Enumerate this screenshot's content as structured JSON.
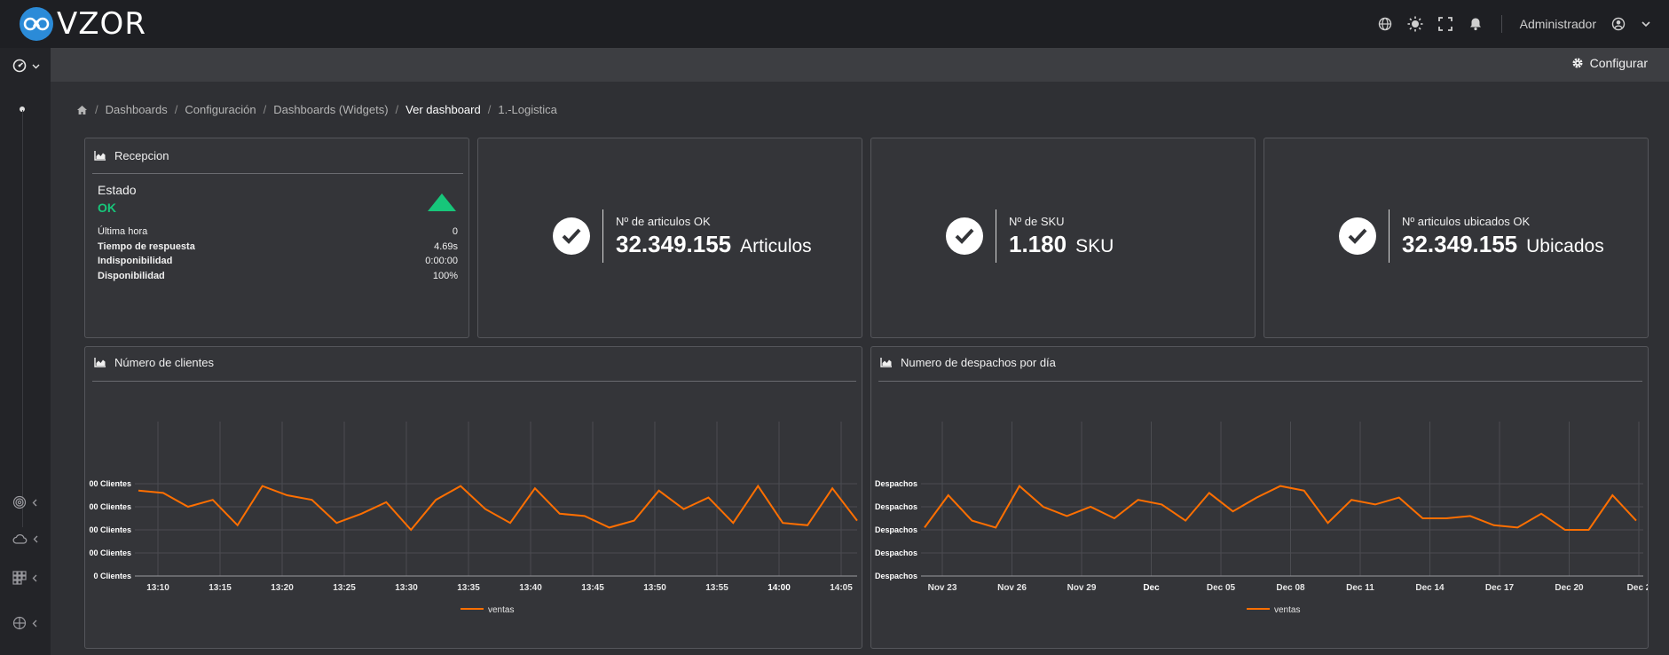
{
  "app": {
    "name": "VZOR"
  },
  "topbar": {
    "user": "Administrador"
  },
  "subbar": {
    "configure_label": "Configurar"
  },
  "breadcrumb": {
    "items": [
      "Dashboards",
      "Configuración",
      "Dashboards (Widgets)",
      "Ver dashboard",
      "1.-Logistica"
    ]
  },
  "reception": {
    "title": "Recepcion",
    "estado_label": "Estado",
    "estado_value": "OK",
    "stats": [
      {
        "label": "Última hora",
        "value": "0"
      },
      {
        "label": "Tiempo de respuesta",
        "value": "4.69s"
      },
      {
        "label": "Indisponibilidad",
        "value": "0:00:00"
      },
      {
        "label": "Disponibilidad",
        "value": "100%"
      }
    ]
  },
  "kpis": [
    {
      "title": "Nº de articulos OK",
      "value": "32.349.155",
      "unit": "Articulos"
    },
    {
      "title": "Nº de SKU",
      "value": "1.180",
      "unit": "SKU"
    },
    {
      "title": "Nº articulos ubicados OK",
      "value": "32.349.155",
      "unit": "Ubicados"
    }
  ],
  "colors": {
    "accent": "#ff6f00",
    "ok": "#17c67a",
    "brand": "#2b8bd8"
  },
  "chart_data": [
    {
      "type": "line",
      "title": "Número de clientes",
      "y_ticks": [
        "00 Clientes",
        "00 Clientes",
        "00 Clientes",
        "00 Clientes",
        "0 Clientes"
      ],
      "x_ticks": [
        "13:10",
        "13:15",
        "13:20",
        "13:25",
        "13:30",
        "13:35",
        "13:40",
        "13:45",
        "13:50",
        "13:55",
        "14:00",
        "14:05"
      ],
      "x_ticks_bold": [
        "14:00"
      ],
      "ylim": [
        0,
        5
      ],
      "series": [
        {
          "name": "ventas",
          "values": [
            3.7,
            3.6,
            3.0,
            3.3,
            2.2,
            3.9,
            3.5,
            3.3,
            2.3,
            2.7,
            3.2,
            2.0,
            3.3,
            3.9,
            2.9,
            2.3,
            3.8,
            2.7,
            2.6,
            2.1,
            2.4,
            3.7,
            2.9,
            3.4,
            2.3,
            3.9,
            2.3,
            2.2,
            3.8,
            2.4
          ]
        }
      ]
    },
    {
      "type": "line",
      "title": "Numero de despachos por día",
      "y_ticks": [
        "Despachos",
        "Despachos",
        "Despachos",
        "Despachos",
        "Despachos"
      ],
      "x_ticks": [
        "Nov 23",
        "Nov 26",
        "Nov 29",
        "Dec",
        "Dec 05",
        "Dec 08",
        "Dec 11",
        "Dec 14",
        "Dec 17",
        "Dec 20",
        "Dec 2"
      ],
      "x_ticks_bold": [
        "Dec"
      ],
      "ylim": [
        0,
        5
      ],
      "series": [
        {
          "name": "ventas",
          "values": [
            2.1,
            3.5,
            2.4,
            2.1,
            3.9,
            3.0,
            2.6,
            3.0,
            2.5,
            3.3,
            3.1,
            2.4,
            3.6,
            2.8,
            3.4,
            3.9,
            3.7,
            2.3,
            3.3,
            3.1,
            3.4,
            2.5,
            2.5,
            2.6,
            2.2,
            2.1,
            2.7,
            2.0,
            2.0,
            3.5,
            2.4
          ]
        }
      ]
    }
  ]
}
